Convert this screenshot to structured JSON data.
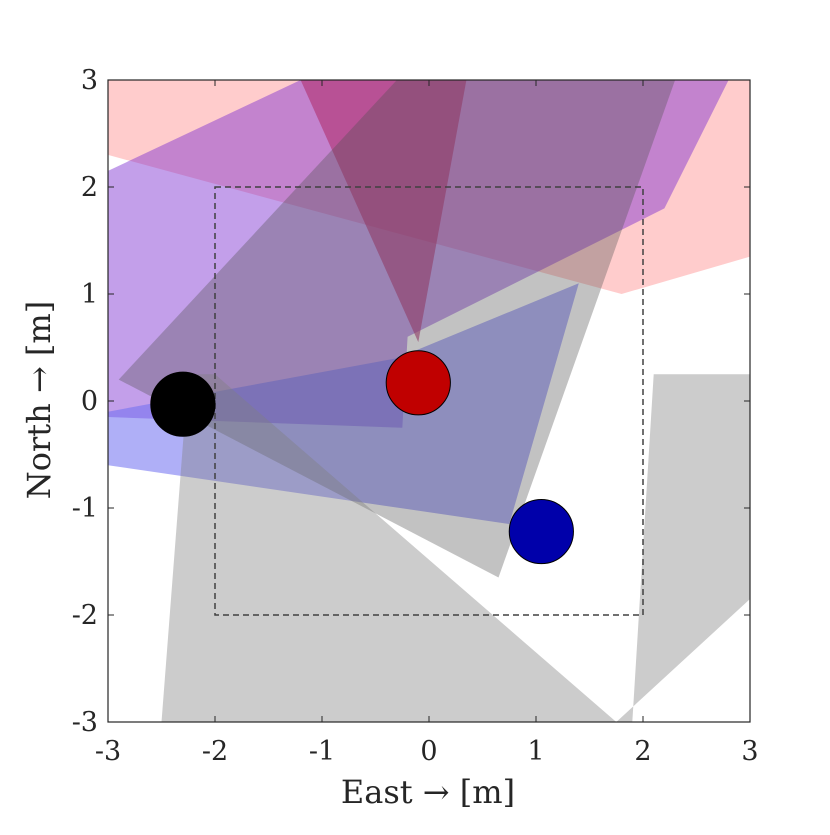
{
  "chart_data": {
    "type": "scatter",
    "title": "",
    "xlabel": "East → [m]",
    "ylabel": "North → [m]",
    "xlim": [
      -3,
      3
    ],
    "ylim": [
      -3,
      3
    ],
    "xticks": [
      -3,
      -2,
      -1,
      0,
      1,
      2,
      3
    ],
    "yticks": [
      -3,
      -2,
      -1,
      0,
      1,
      2,
      3
    ],
    "xtick_labels": [
      "-3",
      "-2",
      "-1",
      "0",
      "1",
      "2",
      "3"
    ],
    "ytick_labels": [
      "-3",
      "-2",
      "-1",
      "0",
      "1",
      "2",
      "3"
    ],
    "grid": false,
    "legend": "none",
    "boundary_box": {
      "x": [
        -2,
        2
      ],
      "y": [
        -2,
        2
      ],
      "style": "dashed",
      "color": "#404040"
    },
    "regions": [
      {
        "color": "#ff8080",
        "opacity": 0.4,
        "vertices": [
          [
            -3.0,
            2.3
          ],
          [
            -3.0,
            3.0
          ],
          [
            3.0,
            3.0
          ],
          [
            3.0,
            1.35
          ],
          [
            1.8,
            1.0
          ]
        ]
      },
      {
        "color": "#7a2ad0",
        "opacity": 0.45,
        "vertices": [
          [
            -3.0,
            -0.15
          ],
          [
            -3.0,
            2.15
          ],
          [
            -1.2,
            3.0
          ],
          [
            2.8,
            3.0
          ],
          [
            2.2,
            1.8
          ],
          [
            -0.2,
            0.6
          ],
          [
            -0.25,
            -0.25
          ]
        ]
      },
      {
        "color": "#b03070",
        "opacity": 0.6,
        "vertices": [
          [
            -1.2,
            3.0
          ],
          [
            0.35,
            3.0
          ],
          [
            -0.1,
            0.55
          ]
        ]
      },
      {
        "color": "#6e6ef0",
        "opacity": 0.55,
        "vertices": [
          [
            -3.0,
            -0.6
          ],
          [
            -3.0,
            -0.1
          ],
          [
            -0.3,
            0.4
          ],
          [
            1.4,
            1.1
          ],
          [
            0.75,
            -1.15
          ]
        ]
      },
      {
        "color": "#505050",
        "opacity": 0.35,
        "vertices": [
          [
            -2.9,
            0.2
          ],
          [
            -0.3,
            3.0
          ],
          [
            2.3,
            3.0
          ],
          [
            0.65,
            -1.65
          ]
        ]
      },
      {
        "color": "#808080",
        "opacity": 0.4,
        "vertices": [
          [
            -2.5,
            -3.0
          ],
          [
            1.9,
            -3.0
          ],
          [
            2.1,
            0.25
          ],
          [
            3.0,
            0.25
          ],
          [
            3.0,
            -1.85
          ],
          [
            1.75,
            -3.0
          ],
          [
            -2.0,
            0.25
          ],
          [
            -2.25,
            0.25
          ]
        ]
      }
    ],
    "points": [
      {
        "name": "",
        "x": -2.3,
        "y": -0.03,
        "color": "#000000"
      },
      {
        "name": "",
        "x": -0.1,
        "y": 0.17,
        "color": "#c00000"
      },
      {
        "name": "",
        "x": 1.05,
        "y": -1.22,
        "color": "#0000aa"
      }
    ],
    "marker_radius_m": 0.3
  }
}
